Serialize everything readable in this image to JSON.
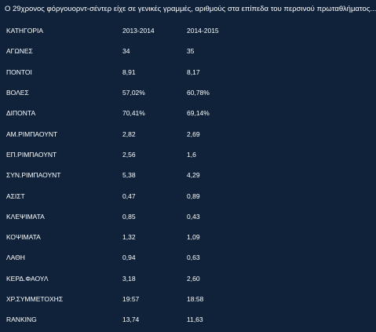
{
  "caption": "Ο 29χρονος φόργουορντ-σέντερ είχε σε γενικές γραμμές, αριθμούς στα επίπεδα του περσινού πρωταθλήματος...",
  "table": {
    "headers": [
      "ΚΑΤΗΓΟΡΙΑ",
      "2013-2014",
      "2014-2015"
    ],
    "rows": [
      [
        "ΑΓΩΝΕΣ",
        "34",
        "35"
      ],
      [
        "ΠΟΝΤΟΙ",
        "8,91",
        "8,17"
      ],
      [
        "ΒΟΛΕΣ",
        "57,02%",
        "60,78%"
      ],
      [
        "ΔΙΠΟΝΤΑ",
        "70,41%",
        "69,14%"
      ],
      [
        "ΑΜ.ΡΙΜΠΑΟΥΝΤ",
        "2,82",
        "2,69"
      ],
      [
        "ΕΠ.ΡΙΜΠΑΟΥΝΤ",
        "2,56",
        "1,6"
      ],
      [
        "ΣΥΝ.ΡΙΜΠΑΟΥΝΤ",
        "5,38",
        "4,29"
      ],
      [
        "ΑΣΙΣΤ",
        "0,47",
        "0,89"
      ],
      [
        "ΚΛΕΨΙΜΑΤΑ",
        "0,85",
        "0,43"
      ],
      [
        "ΚΟΨΙΜΑΤΑ",
        "1,32",
        "1,09"
      ],
      [
        "ΛΑΘΗ",
        "0,94",
        "0,63"
      ],
      [
        "ΚΕΡΔ.ΦΑΟΥΛ",
        "3,18",
        "2,60"
      ],
      [
        "ΧΡ.ΣΥΜΜΕΤΟΧΗΣ",
        "19:57",
        "18:58"
      ],
      [
        "RANKING",
        "13,74",
        "11,63"
      ]
    ]
  },
  "colors": {
    "background": "#0f2239",
    "text": "#ffffff"
  }
}
